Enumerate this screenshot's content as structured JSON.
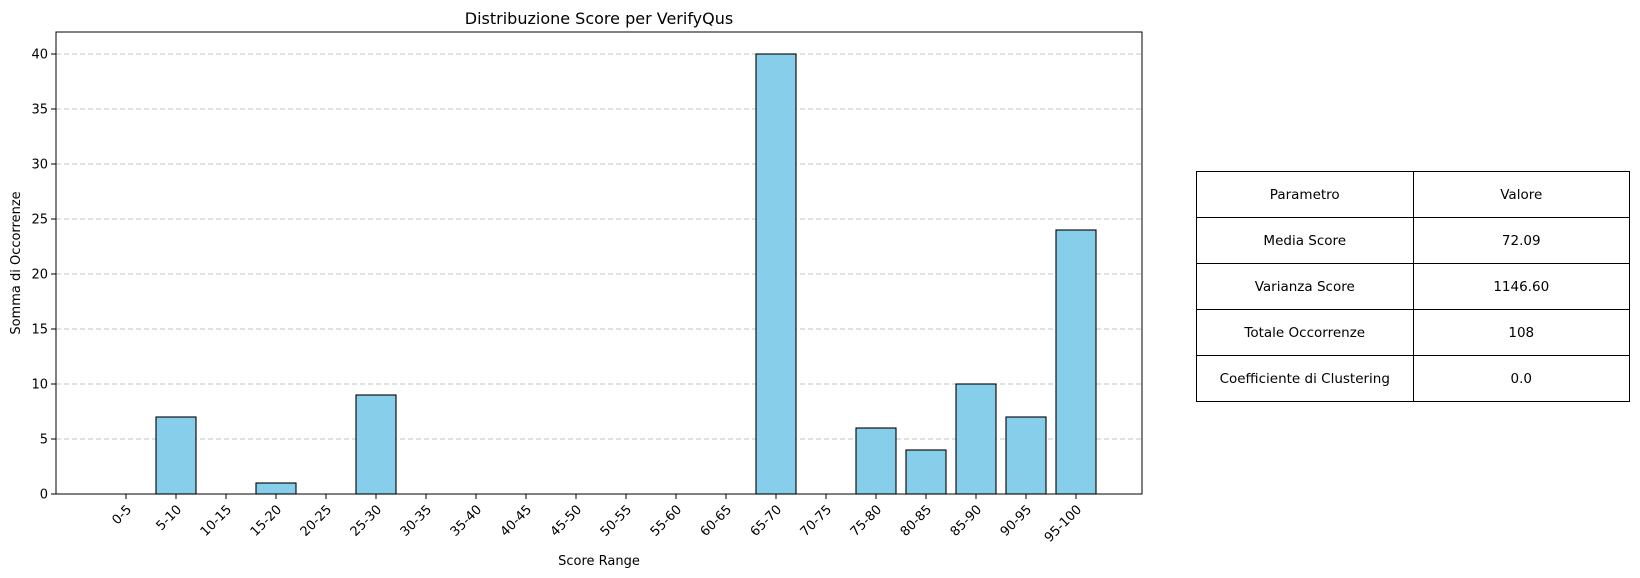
{
  "chart_data": {
    "type": "bar",
    "title": "Distribuzione Score per VerifyQus",
    "xlabel": "Score Range",
    "ylabel": "Somma di Occorrenze",
    "categories": [
      "0-5",
      "5-10",
      "10-15",
      "15-20",
      "20-25",
      "25-30",
      "30-35",
      "35-40",
      "40-45",
      "45-50",
      "50-55",
      "55-60",
      "60-65",
      "65-70",
      "70-75",
      "75-80",
      "80-85",
      "85-90",
      "90-95",
      "95-100"
    ],
    "values": [
      0,
      7,
      0,
      1,
      0,
      9,
      0,
      0,
      0,
      0,
      0,
      0,
      0,
      40,
      0,
      6,
      4,
      10,
      7,
      24
    ],
    "ylim": [
      0,
      42
    ],
    "yticks": [
      0,
      5,
      10,
      15,
      20,
      25,
      30,
      35,
      40
    ],
    "grid": "y-dashed",
    "bar_color": "#87CEEB",
    "edge_color": "#000000",
    "xtick_rotation": 45
  },
  "table": {
    "header": [
      "Parametro",
      "Valore"
    ],
    "rows": [
      [
        "Media Score",
        "72.09"
      ],
      [
        "Varianza Score",
        "1146.60"
      ],
      [
        "Totale Occorrenze",
        "108"
      ],
      [
        "Coefficiente di Clustering",
        "0.0"
      ]
    ]
  }
}
